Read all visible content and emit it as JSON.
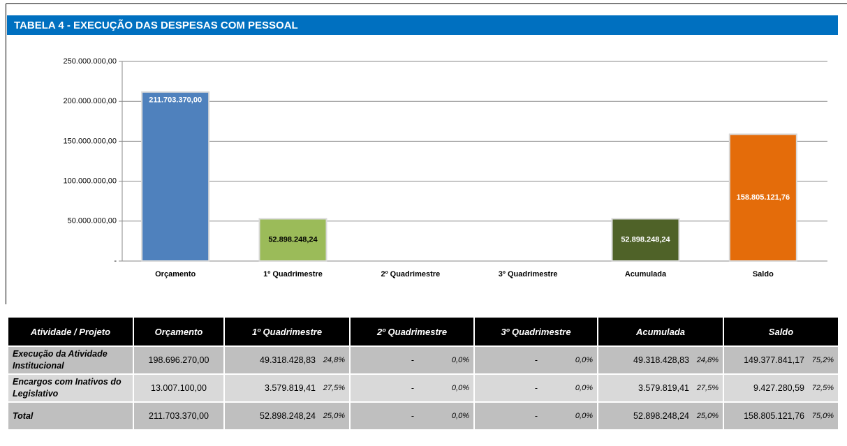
{
  "chart_data": {
    "type": "bar",
    "title": "TABELA 4 - EXECUÇÃO DAS DESPESAS COM PESSOAL",
    "categories": [
      "Orçamento",
      "1º  Quadrimestre",
      "2º Quadrimestre",
      "3º Quadrimestre",
      "Acumulada",
      "Saldo"
    ],
    "values": [
      211703370.0,
      52898248.24,
      null,
      null,
      52898248.24,
      158805121.76
    ],
    "value_labels": [
      "211.703.370,00",
      "52.898.248,24",
      null,
      null,
      "52.898.248,24",
      "158.805.121,76"
    ],
    "colors": [
      "#4f81bd",
      "#9bbb59",
      "#9bbb59",
      "#9bbb59",
      "#4f6228",
      "#e46c0a"
    ],
    "ylim": [
      0,
      250000000
    ],
    "yticks": [
      {
        "value": 0,
        "label": "-"
      },
      {
        "value": 50000000,
        "label": "50.000.000,00"
      },
      {
        "value": 100000000,
        "label": "100.000.000,00"
      },
      {
        "value": 150000000,
        "label": "150.000.000,00"
      },
      {
        "value": 200000000,
        "label": "200.000.000,00"
      },
      {
        "value": 250000000,
        "label": "250.000.000,00"
      }
    ],
    "grid": true
  },
  "table": {
    "header": [
      "Atividade / Projeto",
      "Orçamento",
      "1º  Quadrimestre",
      "2º Quadrimestre",
      "3º Quadrimestre",
      "Acumulada",
      "Saldo"
    ],
    "rows": [
      [
        "Execução da Atividade Institucional",
        "198.696.270,00",
        "49.318.428,83",
        "24,8%",
        "-",
        "0,0%",
        "-",
        "0,0%",
        "49.318.428,83",
        "24,8%",
        "149.377.841,17",
        "75,2%"
      ],
      [
        "Encargos com Inativos do Legislativo",
        "13.007.100,00",
        "3.579.819,41",
        "27,5%",
        "-",
        "0,0%",
        "-",
        "0,0%",
        "3.579.819,41",
        "27,5%",
        "9.427.280,59",
        "72,5%"
      ],
      [
        "Total",
        "211.703.370,00",
        "52.898.248,24",
        "25,0%",
        "-",
        "0,0%",
        "-",
        "0,0%",
        "52.898.248,24",
        "25,0%",
        "158.805.121,76",
        "75,0%"
      ]
    ]
  }
}
